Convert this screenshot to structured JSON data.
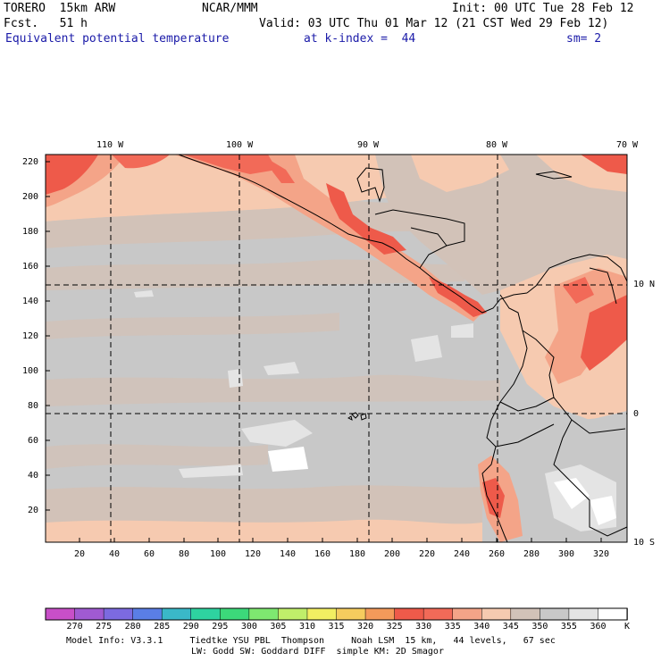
{
  "header": {
    "model": "TORERO  15km ARW",
    "forecast": "Fcst.   51 h",
    "center": "NCAR/MMM",
    "init": "Init: 00 UTC Tue 28 Feb 12",
    "valid": "Valid: 03 UTC Thu 01 Mar 12 (21 CST Wed 29 Feb 12)",
    "field": "Equivalent potential temperature",
    "level": "at k-index =  44",
    "smoothing": "sm= 2"
  },
  "map": {
    "longitude_labels": [
      "110 W",
      "100 W",
      "90 W",
      "80 W",
      "70 W"
    ],
    "latitude_labels": [
      "10 N",
      "0",
      "10 S"
    ],
    "y_ticks": [
      "220",
      "200",
      "180",
      "160",
      "140",
      "120",
      "100",
      "80",
      "60",
      "40",
      "20"
    ],
    "x_ticks": [
      "20",
      "40",
      "60",
      "80",
      "100",
      "120",
      "140",
      "160",
      "180",
      "200",
      "220",
      "240",
      "260",
      "280",
      "300",
      "320"
    ]
  },
  "colorbar": {
    "labels": [
      "270",
      "275",
      "280",
      "285",
      "290",
      "295",
      "300",
      "305",
      "310",
      "315",
      "320",
      "325",
      "330",
      "335",
      "340",
      "345",
      "350",
      "355",
      "360"
    ],
    "unit": "K",
    "colors": [
      "#c84fc8",
      "#a05ad2",
      "#7c6ae0",
      "#5a7ee6",
      "#3ab8c8",
      "#2ed3a0",
      "#3cd97a",
      "#7ee870",
      "#c0ee6a",
      "#f2ee62",
      "#f6cc5e",
      "#f49a5a",
      "#ee5a4a",
      "#f26a58",
      "#f4a488",
      "#f6cab0",
      "#d2c2b8",
      "#c8c8c8",
      "#e4e4e4",
      "#ffffff"
    ]
  },
  "footer": {
    "line1": "Model Info: V3.3.1     Tiedtke YSU PBL  Thompson     Noah LSM  15 km,   44 levels,   67 sec",
    "line2": "LW: Godd SW: Goddard DIFF  simple KM: 2D Smagor"
  }
}
